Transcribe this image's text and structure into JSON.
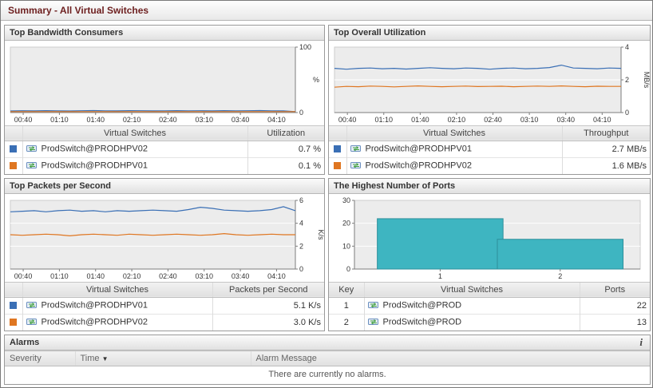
{
  "page": {
    "title": "Summary - All Virtual Switches"
  },
  "icons": {
    "info": "i",
    "sort_desc": "▼"
  },
  "colors": {
    "title_text": "#6d1f1f",
    "series_blue": "#3a6fb5",
    "series_orange": "#df7621",
    "bar_fill": "#3eb5c1",
    "bar_stroke": "#2d8f9b"
  },
  "panels": {
    "bandwidth": {
      "title": "Top Bandwidth Consumers",
      "table": {
        "name_header": "Virtual Switches",
        "value_header": "Utilization",
        "rows": [
          {
            "color": "#3a6fb5",
            "name": "ProdSwitch@PRODHPV02",
            "value": "0.7 %"
          },
          {
            "color": "#df7621",
            "name": "ProdSwitch@PRODHPV01",
            "value": "0.1 %"
          }
        ]
      }
    },
    "utilization": {
      "title": "Top Overall Utilization",
      "table": {
        "name_header": "Virtual Switches",
        "value_header": "Throughput",
        "rows": [
          {
            "color": "#3a6fb5",
            "name": "ProdSwitch@PRODHPV01",
            "value": "2.7 MB/s"
          },
          {
            "color": "#df7621",
            "name": "ProdSwitch@PRODHPV02",
            "value": "1.6 MB/s"
          }
        ]
      }
    },
    "packets": {
      "title": "Top Packets per Second",
      "table": {
        "name_header": "Virtual Switches",
        "value_header": "Packets per Second",
        "rows": [
          {
            "color": "#3a6fb5",
            "name": "ProdSwitch@PRODHPV01",
            "value": "5.1 K/s"
          },
          {
            "color": "#df7621",
            "name": "ProdSwitch@PRODHPV02",
            "value": "3.0 K/s"
          }
        ]
      }
    },
    "ports": {
      "title": "The Highest Number of Ports",
      "table": {
        "key_header": "Key",
        "name_header": "Virtual Switches",
        "value_header": "Ports",
        "rows": [
          {
            "key": "1",
            "name": "ProdSwitch@PROD",
            "value": "22"
          },
          {
            "key": "2",
            "name": "ProdSwitch@PROD",
            "value": "13"
          }
        ]
      }
    }
  },
  "alarms": {
    "title": "Alarms",
    "severity_header": "Severity",
    "time_header": "Time",
    "message_header": "Alarm Message",
    "empty_message": "There are currently no alarms."
  },
  "chart_data": [
    {
      "type": "line",
      "title": "Top Bandwidth Consumers",
      "ylabel": "%",
      "unit_rotated": false,
      "ylim": [
        0,
        100
      ],
      "yticks": [
        0,
        100
      ],
      "axis_side": "right",
      "grid": true,
      "legend_position": "table-below",
      "x_tick_labels": [
        "00:40",
        "01:10",
        "01:40",
        "02:10",
        "02:40",
        "03:10",
        "03:40",
        "04:10"
      ],
      "series": [
        {
          "name": "ProdSwitch@PRODHPV02",
          "color": "#3a6fb5",
          "values": [
            2.5,
            2.8,
            2.6,
            2.9,
            2.7,
            2.5,
            2.8,
            3.0,
            2.7,
            2.6,
            2.9,
            2.8,
            2.6,
            2.7,
            2.9,
            2.7,
            2.8,
            2.6,
            2.9,
            2.7,
            2.8,
            3.0,
            2.7,
            2.6,
            0.7
          ]
        },
        {
          "name": "ProdSwitch@PRODHPV01",
          "color": "#df7621",
          "values": [
            0.3,
            0.4,
            0.3,
            0.35,
            0.3,
            0.4,
            0.3,
            0.3,
            0.35,
            0.3,
            0.4,
            0.3,
            0.35,
            0.3,
            0.3,
            0.4,
            0.3,
            0.35,
            0.3,
            0.3,
            0.4,
            0.3,
            0.35,
            0.3,
            0.1
          ]
        }
      ]
    },
    {
      "type": "line",
      "title": "Top Overall Utilization",
      "ylabel": "MB/s",
      "unit_rotated": true,
      "ylim": [
        0,
        4
      ],
      "yticks": [
        0,
        2,
        4
      ],
      "axis_side": "right",
      "grid": true,
      "legend_position": "table-below",
      "x_tick_labels": [
        "00:40",
        "01:10",
        "01:40",
        "02:10",
        "02:40",
        "03:10",
        "03:40",
        "04:10"
      ],
      "series": [
        {
          "name": "ProdSwitch@PRODHPV01",
          "color": "#3a6fb5",
          "values": [
            2.7,
            2.65,
            2.7,
            2.72,
            2.68,
            2.7,
            2.66,
            2.7,
            2.74,
            2.7,
            2.68,
            2.72,
            2.7,
            2.65,
            2.7,
            2.72,
            2.68,
            2.7,
            2.75,
            2.9,
            2.72,
            2.7,
            2.68,
            2.72,
            2.7
          ]
        },
        {
          "name": "ProdSwitch@PRODHPV02",
          "color": "#df7621",
          "values": [
            1.55,
            1.6,
            1.58,
            1.62,
            1.6,
            1.57,
            1.6,
            1.63,
            1.6,
            1.58,
            1.6,
            1.62,
            1.59,
            1.6,
            1.61,
            1.58,
            1.6,
            1.62,
            1.6,
            1.63,
            1.6,
            1.58,
            1.61,
            1.6,
            1.6
          ]
        }
      ]
    },
    {
      "type": "line",
      "title": "Top Packets per Second",
      "ylabel": "K/s",
      "unit_rotated": true,
      "ylim": [
        0,
        6
      ],
      "yticks": [
        0,
        2,
        4,
        6
      ],
      "axis_side": "right",
      "grid": true,
      "legend_position": "table-below",
      "x_tick_labels": [
        "00:40",
        "01:10",
        "01:40",
        "02:10",
        "02:40",
        "03:10",
        "03:40",
        "04:10"
      ],
      "series": [
        {
          "name": "ProdSwitch@PRODHPV01",
          "color": "#3a6fb5",
          "values": [
            5.0,
            5.05,
            5.1,
            5.0,
            5.1,
            5.15,
            5.05,
            5.1,
            5.0,
            5.1,
            5.05,
            5.1,
            5.15,
            5.1,
            5.05,
            5.2,
            5.4,
            5.3,
            5.15,
            5.1,
            5.05,
            5.1,
            5.2,
            5.45,
            5.1
          ]
        },
        {
          "name": "ProdSwitch@PRODHPV02",
          "color": "#df7621",
          "values": [
            3.0,
            2.95,
            3.0,
            3.05,
            3.0,
            2.9,
            3.0,
            3.05,
            3.0,
            2.95,
            3.05,
            3.0,
            2.95,
            3.0,
            3.05,
            3.0,
            2.95,
            3.0,
            3.1,
            3.0,
            2.95,
            3.0,
            3.05,
            3.0,
            3.0
          ]
        }
      ]
    },
    {
      "type": "bar",
      "title": "The Highest Number of Ports",
      "ylabel": "",
      "ylim": [
        0,
        30
      ],
      "yticks": [
        0,
        10,
        20,
        30
      ],
      "axis_side": "left",
      "grid": true,
      "categories": [
        "1",
        "2"
      ],
      "values": [
        22,
        13
      ],
      "bar_color": "#3eb5c1",
      "bar_stroke": "#2d8f9b"
    }
  ]
}
